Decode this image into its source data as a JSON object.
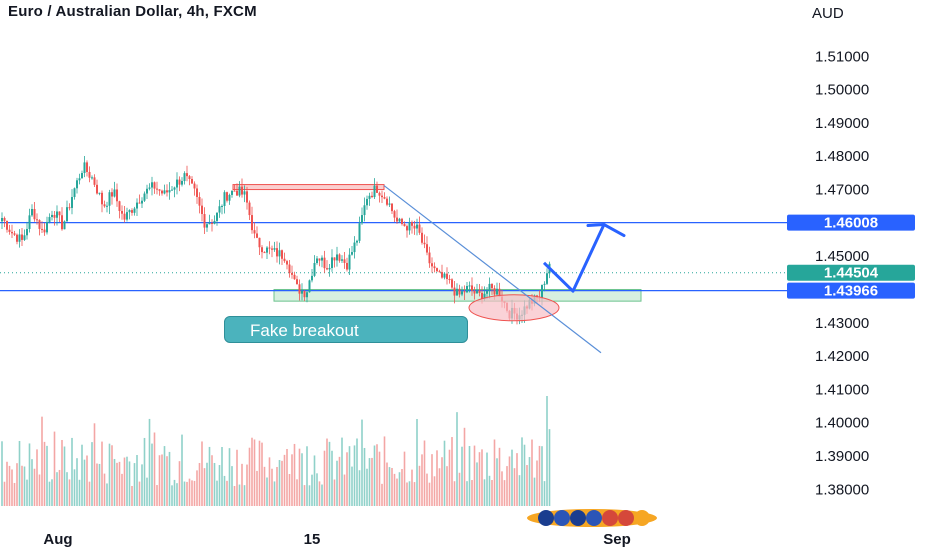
{
  "header": {
    "title": "Euro / Australian Dollar, 4h, FXCM",
    "currency": "AUD"
  },
  "chart_data": {
    "type": "candlestick",
    "title": "Euro / Australian Dollar, 4h, FXCM",
    "y_unit": "AUD",
    "ylim": [
      1.375,
      1.5155
    ],
    "y_ticks": [
      "1.51000",
      "1.50000",
      "1.49000",
      "1.48000",
      "1.47000",
      "1.46000",
      "1.45000",
      "1.44000",
      "1.43000",
      "1.42000",
      "1.41000",
      "1.40000",
      "1.39000",
      "1.38000"
    ],
    "x_ticks": [
      "Aug",
      "15",
      "Sep"
    ],
    "price_path": [
      1.4615,
      1.457,
      1.4545,
      1.464,
      1.457,
      1.464,
      1.459,
      1.469,
      1.477,
      1.473,
      1.465,
      1.4695,
      1.461,
      1.465,
      1.469,
      1.471,
      1.4685,
      1.4715,
      1.474,
      1.469,
      1.46,
      1.461,
      1.468,
      1.47,
      1.468,
      1.4545,
      1.452,
      1.451,
      1.45,
      1.4405,
      1.439,
      1.4505,
      1.447,
      1.451,
      1.4475,
      1.455,
      1.468,
      1.4705,
      1.467,
      1.46,
      1.459,
      1.458,
      1.449,
      1.444,
      1.4425,
      1.438,
      1.4405,
      1.438,
      1.44,
      1.4395,
      1.433,
      1.4325,
      1.436,
      1.4375,
      1.448
    ],
    "current_price": "1.44504",
    "levels": [
      {
        "price": 1.46008,
        "label": "1.46008",
        "color": "#2962ff"
      },
      {
        "price": 1.43966,
        "label": "1.43966",
        "color": "#2962ff"
      }
    ],
    "zones": [
      {
        "type": "resistance",
        "top": 1.4715,
        "bottom": 1.47,
        "color": "#f7a8a8"
      },
      {
        "type": "support",
        "top": 1.44,
        "bottom": 1.4365,
        "color": "#b7e4c7"
      }
    ],
    "trendline": {
      "from": {
        "index": 38,
        "price": 1.4712
      },
      "to": {
        "index": 62,
        "price": 1.421
      }
    },
    "projection": [
      1.448,
      1.4395,
      1.4595
    ],
    "volume_max": 1.0,
    "annotations": [
      "Fake breakout"
    ]
  },
  "colors": {
    "up": "#26a69a",
    "down": "#ef5350",
    "vol_up": "#8fd1c9",
    "vol_down": "#f3a6a5",
    "level_line": "#2962ff",
    "trendline": "#5a8fd8",
    "callout_bg": "#4bb3bd",
    "price_tag": "#26a69a",
    "ellipse": "#f8bfc6"
  },
  "annotation": {
    "fake_breakout": "Fake breakout"
  },
  "icons": {
    "logo": "flags-logo-icon",
    "arrow": "projection-arrow-icon"
  }
}
